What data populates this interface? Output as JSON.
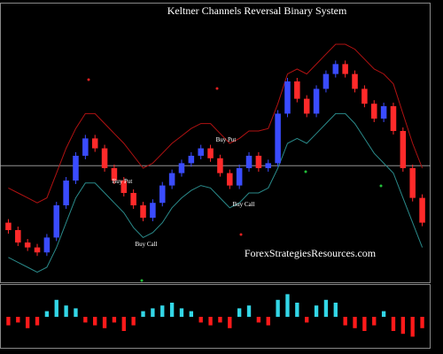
{
  "chart_data": {
    "type": "candlestick",
    "title": "Keltner Channels Reversal Binary System",
    "watermark": "ForexStrategiesResources.com",
    "annotations": [
      "Buy Put",
      "Buy Put",
      "Buy Call",
      "Buy Call"
    ],
    "open": [
      18,
      15,
      10,
      8,
      6,
      12,
      25,
      35,
      45,
      52,
      48,
      40,
      35,
      30,
      25,
      20,
      26,
      33,
      38,
      42,
      45,
      48,
      44,
      38,
      33,
      40,
      45,
      40,
      42,
      62,
      75,
      68,
      62,
      72,
      78,
      82,
      78,
      72,
      66,
      60,
      65,
      55,
      40,
      28
    ],
    "close": [
      15,
      10,
      8,
      6,
      12,
      25,
      35,
      45,
      52,
      48,
      40,
      35,
      30,
      25,
      20,
      26,
      33,
      38,
      42,
      45,
      48,
      44,
      38,
      33,
      40,
      45,
      40,
      42,
      62,
      75,
      68,
      62,
      72,
      78,
      82,
      78,
      72,
      66,
      60,
      65,
      55,
      40,
      28,
      18
    ],
    "up_color": "#3a4cff",
    "down_color": "#ff2a2a",
    "series": [
      {
        "color": "#b01212",
        "values": [
          32,
          30,
          28,
          26,
          28,
          38,
          48,
          56,
          62,
          62,
          58,
          54,
          50,
          45,
          40,
          42,
          46,
          50,
          53,
          56,
          58,
          58,
          54,
          50,
          52,
          55,
          55,
          56,
          66,
          78,
          80,
          78,
          82,
          86,
          90,
          90,
          88,
          84,
          80,
          78,
          74,
          62,
          50,
          40
        ]
      },
      {
        "color": "#2a8a8a",
        "values": [
          4,
          2,
          0,
          -2,
          0,
          8,
          18,
          28,
          34,
          34,
          30,
          26,
          22,
          16,
          12,
          14,
          18,
          24,
          28,
          31,
          33,
          32,
          28,
          24,
          26,
          30,
          30,
          32,
          40,
          50,
          52,
          50,
          54,
          58,
          62,
          62,
          58,
          52,
          46,
          42,
          38,
          28,
          18,
          8
        ]
      }
    ],
    "level": 41,
    "ylim": [
      -5,
      100
    ],
    "oscillator": {
      "type": "bar",
      "values": [
        -3,
        -2,
        -4,
        -3,
        2,
        6,
        4,
        3,
        -2,
        -3,
        -4,
        -2,
        -5,
        -3,
        2,
        3,
        4,
        5,
        3,
        2,
        -2,
        -3,
        -2,
        -4,
        3,
        4,
        -2,
        -3,
        6,
        8,
        5,
        -2,
        4,
        6,
        5,
        -3,
        -4,
        -5,
        -3,
        2,
        -5,
        -6,
        -7,
        -4
      ],
      "positive_color": "#33d6e6",
      "negative_color": "#ff1a1a",
      "ylim": [
        -10,
        10
      ]
    }
  }
}
